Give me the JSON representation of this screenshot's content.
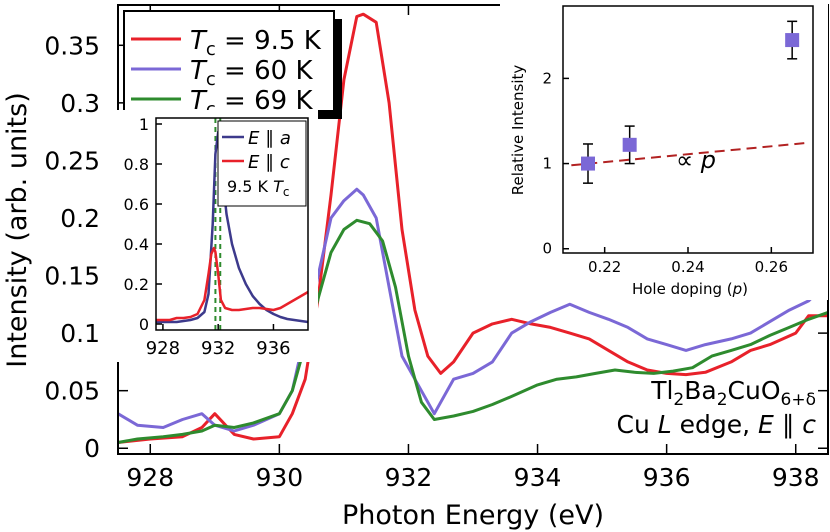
{
  "chart_data": [
    {
      "type": "line",
      "xlabel": "Photon Energy (eV)",
      "ylabel": "Intensity (arb. units)",
      "xlim": [
        927.5,
        938.5
      ],
      "ylim": [
        -0.005,
        0.385
      ],
      "xticks": [
        928,
        930,
        932,
        934,
        936,
        938
      ],
      "yticks": [
        0,
        0.05,
        0.1,
        0.15,
        0.2,
        0.25,
        0.3,
        0.35
      ],
      "ytick_labels": [
        "0",
        "0.05",
        "0.1",
        "0.15",
        "0.2",
        "0.25",
        "0.3",
        "0.35"
      ],
      "legend": {
        "placement": "top-left",
        "entries": [
          {
            "prefix": "T",
            "sub": "c",
            "suffix": " = 9.5 K",
            "color": "#e8212a"
          },
          {
            "prefix": "T",
            "sub": "c",
            "suffix": " = 60 K",
            "color": "#7b68d6"
          },
          {
            "prefix": "T",
            "sub": "c",
            "suffix": " = 69 K",
            "color": "#2e8b2e"
          }
        ]
      },
      "annotation": {
        "line1": {
          "a": "Tl",
          "s1": "2",
          "b": "Ba",
          "s2": "2",
          "c": "CuO",
          "s3": "6+δ"
        },
        "line2": {
          "a": "Cu ",
          "b": "L",
          "c": " edge, ",
          "d": "E",
          "e": " ∥ ",
          "f": "c"
        }
      },
      "series": [
        {
          "color": "#e8212a",
          "x": [
            927.5,
            928.0,
            928.5,
            928.8,
            929.0,
            929.3,
            929.6,
            930.0,
            930.2,
            930.4,
            930.6,
            930.8,
            931.0,
            931.2,
            931.3,
            931.5,
            931.7,
            931.9,
            932.1,
            932.3,
            932.5,
            932.7,
            933.0,
            933.3,
            933.6,
            933.9,
            934.2,
            934.5,
            934.8,
            935.1,
            935.4,
            935.7,
            936.0,
            936.3,
            936.6,
            937.0,
            937.3,
            937.6,
            938.0,
            938.2,
            938.5
          ],
          "y": [
            0.005,
            0.008,
            0.01,
            0.018,
            0.03,
            0.012,
            0.008,
            0.01,
            0.03,
            0.06,
            0.13,
            0.22,
            0.32,
            0.375,
            0.377,
            0.37,
            0.3,
            0.19,
            0.12,
            0.08,
            0.065,
            0.075,
            0.1,
            0.108,
            0.112,
            0.108,
            0.105,
            0.1,
            0.095,
            0.085,
            0.075,
            0.068,
            0.065,
            0.064,
            0.066,
            0.075,
            0.085,
            0.09,
            0.1,
            0.115,
            0.115
          ]
        },
        {
          "color": "#7b68d6",
          "x": [
            927.5,
            927.8,
            928.2,
            928.5,
            928.8,
            929.0,
            929.3,
            929.6,
            930.0,
            930.2,
            930.4,
            930.6,
            930.8,
            931.0,
            931.2,
            931.3,
            931.5,
            931.7,
            931.9,
            932.1,
            932.4,
            932.7,
            933.0,
            933.3,
            933.6,
            933.9,
            934.2,
            934.5,
            934.8,
            935.1,
            935.4,
            935.7,
            936.0,
            936.3,
            936.6,
            937.0,
            937.3,
            937.6,
            937.9,
            938.2,
            938.5
          ],
          "y": [
            0.03,
            0.02,
            0.018,
            0.025,
            0.03,
            0.02,
            0.015,
            0.02,
            0.03,
            0.05,
            0.1,
            0.15,
            0.2,
            0.215,
            0.225,
            0.22,
            0.2,
            0.14,
            0.08,
            0.06,
            0.03,
            0.06,
            0.065,
            0.075,
            0.1,
            0.11,
            0.118,
            0.125,
            0.118,
            0.112,
            0.105,
            0.095,
            0.09,
            0.085,
            0.09,
            0.095,
            0.1,
            0.11,
            0.12,
            0.128,
            0.145
          ]
        },
        {
          "color": "#2e8b2e",
          "x": [
            927.5,
            927.8,
            928.2,
            928.5,
            928.8,
            929.0,
            929.3,
            929.6,
            930.0,
            930.2,
            930.4,
            930.6,
            930.8,
            931.0,
            931.2,
            931.4,
            931.6,
            931.8,
            932.0,
            932.2,
            932.4,
            932.7,
            933.0,
            933.3,
            933.6,
            934.0,
            934.3,
            934.6,
            934.9,
            935.2,
            935.5,
            935.8,
            936.1,
            936.4,
            936.7,
            937.0,
            937.3,
            937.6,
            937.9,
            938.2,
            938.5
          ],
          "y": [
            0.005,
            0.008,
            0.01,
            0.012,
            0.015,
            0.02,
            0.018,
            0.022,
            0.03,
            0.05,
            0.09,
            0.13,
            0.17,
            0.19,
            0.198,
            0.195,
            0.18,
            0.14,
            0.08,
            0.04,
            0.025,
            0.028,
            0.032,
            0.038,
            0.045,
            0.055,
            0.06,
            0.062,
            0.065,
            0.068,
            0.066,
            0.065,
            0.067,
            0.07,
            0.08,
            0.085,
            0.09,
            0.098,
            0.105,
            0.112,
            0.118
          ]
        }
      ]
    },
    {
      "type": "line",
      "xlim": [
        927.5,
        938.5
      ],
      "ylim": [
        -0.03,
        1.03
      ],
      "xticks": [
        928,
        932,
        936
      ],
      "yticks": [
        0,
        0.2,
        0.4,
        0.6,
        0.8,
        1
      ],
      "ytick_labels": [
        "0",
        "0.2",
        "0.4",
        "0.6",
        "0.8",
        "1"
      ],
      "vlines": [
        931.8,
        932.15
      ],
      "vline_color": "#2e8b2e",
      "label": {
        "a": "9.5 K ",
        "b": "T",
        "c": "c"
      },
      "legend": {
        "placement": "top-right",
        "entries": [
          {
            "a": "E",
            "b": " ∥ ",
            "c": "a",
            "color": "#3d3a8c"
          },
          {
            "a": "E",
            "b": " ∥ ",
            "c": "c",
            "color": "#e8212a"
          }
        ]
      },
      "series": [
        {
          "color": "#3d3a8c",
          "x": [
            927.5,
            928.0,
            928.5,
            929.0,
            929.5,
            930.0,
            930.5,
            931.0,
            931.3,
            931.6,
            931.8,
            932.0,
            932.1,
            932.3,
            932.6,
            933.0,
            933.5,
            934.0,
            934.5,
            935.0,
            935.5,
            936.0,
            936.5,
            937.0,
            937.5,
            938.0,
            938.5
          ],
          "y": [
            0.01,
            0.01,
            0.01,
            0.01,
            0.015,
            0.02,
            0.03,
            0.06,
            0.15,
            0.5,
            0.85,
            0.96,
            0.92,
            0.75,
            0.55,
            0.4,
            0.28,
            0.2,
            0.14,
            0.1,
            0.07,
            0.05,
            0.035,
            0.025,
            0.02,
            0.015,
            0.01
          ]
        },
        {
          "color": "#e8212a",
          "x": [
            927.5,
            928.0,
            928.5,
            929.0,
            929.5,
            930.0,
            930.5,
            931.0,
            931.3,
            931.5,
            931.7,
            931.8,
            932.0,
            932.2,
            932.5,
            933.0,
            933.5,
            934.0,
            934.5,
            935.0,
            935.5,
            936.0,
            936.5,
            937.0,
            937.5,
            938.0,
            938.5
          ],
          "y": [
            0.02,
            0.02,
            0.02,
            0.03,
            0.03,
            0.035,
            0.05,
            0.12,
            0.25,
            0.35,
            0.38,
            0.36,
            0.25,
            0.12,
            0.08,
            0.07,
            0.07,
            0.075,
            0.08,
            0.08,
            0.075,
            0.07,
            0.08,
            0.1,
            0.12,
            0.14,
            0.16
          ]
        }
      ]
    },
    {
      "type": "scatter",
      "xlabel": {
        "a": "Hole doping (",
        "b": "p",
        "c": ")"
      },
      "ylabel": "Relative Intensity",
      "xlim": [
        0.21,
        0.27
      ],
      "ylim": [
        -0.05,
        2.85
      ],
      "xticks": [
        0.22,
        0.24,
        0.26
      ],
      "xtick_labels": [
        "0.22",
        "0.24",
        "0.26"
      ],
      "yticks": [
        0,
        1,
        2
      ],
      "ytick_labels": [
        "0",
        "1",
        "2"
      ],
      "marker_color": "#7b68d6",
      "points": [
        {
          "x": 0.216,
          "y": 1.0,
          "err": 0.23
        },
        {
          "x": 0.226,
          "y": 1.22,
          "err": 0.22
        },
        {
          "x": 0.265,
          "y": 2.45,
          "err": 0.22
        }
      ],
      "fit_line": {
        "x": [
          0.212,
          0.268
        ],
        "y": [
          0.98,
          1.24
        ],
        "color": "#b22222"
      },
      "label": {
        "a": "∝ ",
        "b": "p"
      }
    }
  ]
}
